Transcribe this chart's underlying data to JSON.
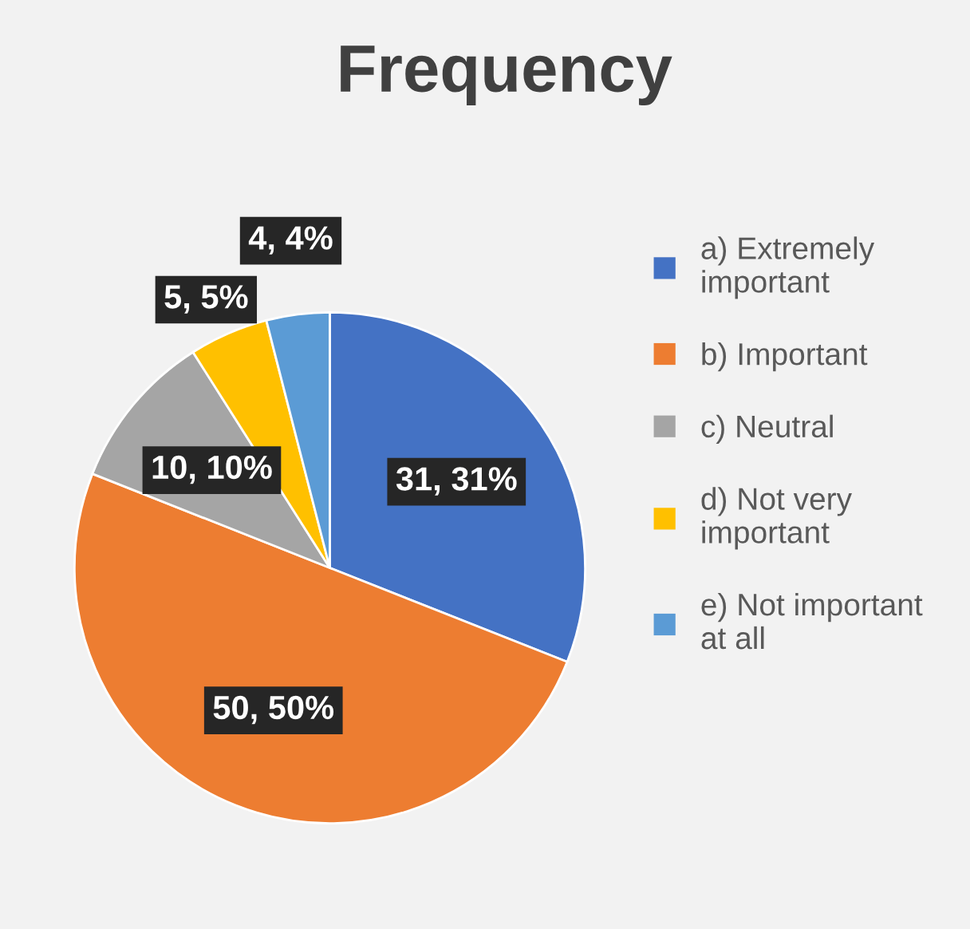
{
  "chart_data": {
    "type": "pie",
    "title": "Frequency",
    "categories": [
      "a) Extremely important",
      "b) Important",
      "c) Neutral",
      "d) Not very important",
      "e) Not important at all"
    ],
    "values": [
      31,
      50,
      10,
      5,
      4
    ],
    "colors": [
      "#4472c4",
      "#ed7d31",
      "#a5a5a5",
      "#ffc000",
      "#5b9bd5"
    ],
    "value_labels": [
      "31, 31%",
      "50, 50%",
      "10, 10%",
      "5, 5%",
      "4, 4%"
    ],
    "legend": "right"
  }
}
